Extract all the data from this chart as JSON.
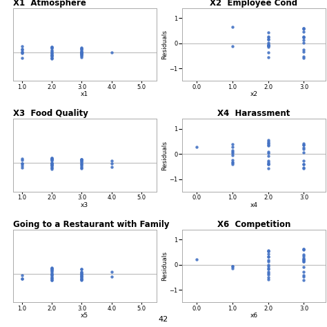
{
  "panels": [
    {
      "title": "X1  Atmosphere",
      "xlabel": "x1",
      "ylabel": "",
      "has_residuals": false,
      "title_loc": "left",
      "xlim": [
        0.7,
        5.5
      ],
      "ylim": [
        -0.55,
        0.85
      ],
      "xticks": [
        1.0,
        2.0,
        3.0,
        4.0,
        5.0
      ],
      "yticks": [],
      "clusters": [
        {
          "x": 1.0,
          "n": 7,
          "jitter": 0.12
        },
        {
          "x": 2.0,
          "n": 16,
          "jitter": 0.12
        },
        {
          "x": 3.0,
          "n": 18,
          "jitter": 0.12
        },
        {
          "x": 4.0,
          "n": 1,
          "jitter": 0.0
        }
      ]
    },
    {
      "title": "X2  Employee Cond",
      "xlabel": "x2",
      "ylabel": "Residuals",
      "has_residuals": true,
      "title_loc": "center",
      "xlim": [
        -0.4,
        3.6
      ],
      "ylim": [
        -1.5,
        1.4
      ],
      "xticks": [
        0.0,
        1.0,
        2.0,
        3.0
      ],
      "yticks": [
        -1,
        0,
        1
      ],
      "clusters": [
        {
          "x": 1.0,
          "vals": [
            0.65,
            -0.12
          ]
        },
        {
          "x": 2.0,
          "n": 14,
          "spread": 0.55
        },
        {
          "x": 3.0,
          "n": 13,
          "spread": 0.65
        }
      ]
    },
    {
      "title": "X3  Food Quality",
      "xlabel": "x3",
      "ylabel": "",
      "has_residuals": false,
      "title_loc": "left",
      "xlim": [
        0.7,
        5.5
      ],
      "ylim": [
        -0.55,
        0.85
      ],
      "xticks": [
        1.0,
        2.0,
        3.0,
        4.0,
        5.0
      ],
      "yticks": [],
      "clusters": [
        {
          "x": 1.0,
          "n": 6,
          "jitter": 0.12
        },
        {
          "x": 2.0,
          "n": 19,
          "jitter": 0.12
        },
        {
          "x": 3.0,
          "n": 13,
          "jitter": 0.12
        },
        {
          "x": 4.0,
          "n": 3,
          "jitter": 0.08
        }
      ]
    },
    {
      "title": "X4  Harassment",
      "xlabel": "x4",
      "ylabel": "Residuals",
      "has_residuals": true,
      "title_loc": "center",
      "xlim": [
        -0.4,
        3.6
      ],
      "ylim": [
        -1.5,
        1.4
      ],
      "xticks": [
        0.0,
        1.0,
        2.0,
        3.0
      ],
      "yticks": [
        -1,
        0,
        1
      ],
      "clusters": [
        {
          "x": 0.0,
          "vals": [
            0.28
          ]
        },
        {
          "x": 1.0,
          "n": 10,
          "spread": 0.45
        },
        {
          "x": 2.0,
          "n": 15,
          "spread": 0.6
        },
        {
          "x": 3.0,
          "n": 11,
          "spread": 0.6
        }
      ]
    },
    {
      "title": "Going to a Restaurant with Family",
      "xlabel": "x5",
      "ylabel": "",
      "has_residuals": false,
      "title_loc": "left",
      "xlim": [
        0.7,
        5.5
      ],
      "ylim": [
        -0.55,
        0.85
      ],
      "xticks": [
        1.0,
        2.0,
        3.0,
        4.0,
        5.0
      ],
      "yticks": [],
      "clusters": [
        {
          "x": 1.0,
          "n": 3,
          "jitter": 0.1
        },
        {
          "x": 2.0,
          "n": 17,
          "jitter": 0.12
        },
        {
          "x": 3.0,
          "n": 16,
          "jitter": 0.12
        },
        {
          "x": 4.0,
          "n": 2,
          "jitter": 0.08
        }
      ]
    },
    {
      "title": "X6  Competition",
      "xlabel": "x6",
      "ylabel": "Residuals",
      "has_residuals": true,
      "title_loc": "center",
      "xlim": [
        -0.4,
        3.6
      ],
      "ylim": [
        -1.5,
        1.4
      ],
      "xticks": [
        0.0,
        1.0,
        2.0,
        3.0
      ],
      "yticks": [
        -1,
        0,
        1
      ],
      "clusters": [
        {
          "x": 0.0,
          "vals": [
            0.22
          ]
        },
        {
          "x": 1.0,
          "n": 3,
          "spread": 0.22
        },
        {
          "x": 2.0,
          "n": 17,
          "spread": 0.65
        },
        {
          "x": 3.0,
          "n": 16,
          "spread": 0.65
        }
      ]
    }
  ],
  "dot_color": "#4472C4",
  "dot_size": 10,
  "bg_color": "#ffffff",
  "panel_border_color": "#aaaaaa",
  "zero_line_color": "#bbbbbb",
  "title_fontsize": 8.5,
  "label_fontsize": 6.5,
  "tick_fontsize": 6.0
}
